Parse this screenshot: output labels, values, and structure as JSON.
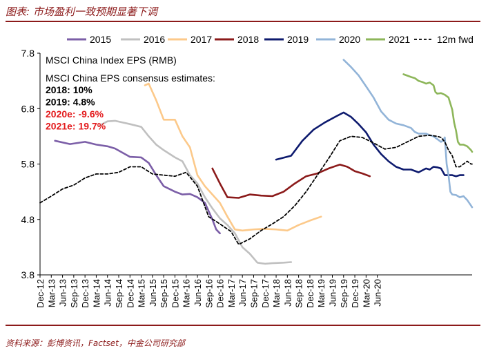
{
  "header": {
    "title": "图表: 市场盈利一致预期显著下调"
  },
  "footer": {
    "source": "资料来源：彭博资讯，Factset，中金公司研究部"
  },
  "chart_data": {
    "type": "line",
    "title": "MSCI China Index EPS (RMB)",
    "ylim": [
      3.8,
      7.8
    ],
    "yticks": [
      3.8,
      4.8,
      5.8,
      6.8,
      7.8
    ],
    "x_start": "Dec-12",
    "x_end": "Oct-20",
    "xticks": [
      "Dec-12",
      "Mar-13",
      "Jun-13",
      "Sep-13",
      "Dec-13",
      "Mar-14",
      "Jun-14",
      "Sep-14",
      "Dec-14",
      "Mar-15",
      "Jun-15",
      "Sep-15",
      "Dec-15",
      "Mar-16",
      "Jun-16",
      "Sep-16",
      "Dec-16",
      "Mar-17",
      "Jun-17",
      "Sep-17",
      "Dec-17",
      "Mar-18",
      "Jun-18",
      "Sep-18",
      "Dec-18",
      "Mar-19",
      "Jun-19",
      "Sep-19",
      "Dec-19",
      "Mar-20",
      "Jun-20"
    ],
    "annotation": {
      "heading": "MSCI China EPS consensus estimates:",
      "lines": [
        {
          "text": "2018: 10%",
          "color": "#000000"
        },
        {
          "text": "2019: 4.8%",
          "color": "#000000"
        },
        {
          "text": "2020e: -9.6%",
          "color": "#e31a1c"
        },
        {
          "text": "2021e: 19.7%",
          "color": "#e31a1c"
        }
      ]
    },
    "series": [
      {
        "name": "2015",
        "color": "#7b5ea7",
        "dash": false,
        "points": [
          [
            4,
            6.22
          ],
          [
            8,
            6.16
          ],
          [
            12,
            6.2
          ],
          [
            15,
            6.15
          ],
          [
            18,
            6.12
          ],
          [
            20,
            6.08
          ],
          [
            24,
            5.93
          ],
          [
            27,
            5.92
          ],
          [
            29,
            5.82
          ],
          [
            31,
            5.6
          ],
          [
            33,
            5.4
          ],
          [
            36,
            5.3
          ],
          [
            38,
            5.25
          ],
          [
            40,
            5.26
          ],
          [
            42,
            5.2
          ],
          [
            44,
            5.1
          ],
          [
            46,
            4.8
          ],
          [
            47,
            4.62
          ],
          [
            48,
            4.55
          ]
        ]
      },
      {
        "name": "2016",
        "color": "#c0c0c0",
        "dash": false,
        "points": [
          [
            16,
            6.5
          ],
          [
            18,
            6.57
          ],
          [
            20,
            6.58
          ],
          [
            24,
            6.52
          ],
          [
            27,
            6.47
          ],
          [
            29,
            6.3
          ],
          [
            31,
            6.15
          ],
          [
            33,
            6.05
          ],
          [
            36,
            5.92
          ],
          [
            38,
            5.85
          ],
          [
            40,
            5.6
          ],
          [
            42,
            5.45
          ],
          [
            44,
            5.2
          ],
          [
            46,
            5.0
          ],
          [
            48,
            4.82
          ],
          [
            50,
            4.7
          ],
          [
            52,
            4.55
          ],
          [
            54,
            4.3
          ],
          [
            56,
            4.18
          ],
          [
            58,
            4.02
          ],
          [
            60,
            4.0
          ],
          [
            62,
            4.01
          ],
          [
            65,
            4.02
          ],
          [
            67,
            4.03
          ]
        ]
      },
      {
        "name": "2017",
        "color": "#fcc98a",
        "dash": false,
        "points": [
          [
            28,
            7.22
          ],
          [
            29,
            7.25
          ],
          [
            31,
            6.95
          ],
          [
            33,
            6.6
          ],
          [
            36,
            6.6
          ],
          [
            38,
            6.3
          ],
          [
            40,
            6.1
          ],
          [
            42,
            5.6
          ],
          [
            44,
            5.4
          ],
          [
            46,
            5.25
          ],
          [
            48,
            5.1
          ],
          [
            50,
            4.85
          ],
          [
            52,
            4.62
          ],
          [
            54,
            4.6
          ],
          [
            57,
            4.62
          ],
          [
            60,
            4.63
          ],
          [
            63,
            4.62
          ],
          [
            66,
            4.6
          ],
          [
            69,
            4.7
          ],
          [
            72,
            4.78
          ],
          [
            75,
            4.85
          ]
        ]
      },
      {
        "name": "2018",
        "color": "#8b1a1a",
        "dash": false,
        "points": [
          [
            46,
            5.72
          ],
          [
            48,
            5.45
          ],
          [
            50,
            5.2
          ],
          [
            53,
            5.19
          ],
          [
            56,
            5.25
          ],
          [
            59,
            5.23
          ],
          [
            62,
            5.22
          ],
          [
            65,
            5.3
          ],
          [
            68,
            5.45
          ],
          [
            71,
            5.58
          ],
          [
            74,
            5.63
          ],
          [
            77,
            5.72
          ],
          [
            80,
            5.79
          ],
          [
            82,
            5.75
          ],
          [
            84,
            5.67
          ],
          [
            86,
            5.63
          ],
          [
            88,
            5.58
          ]
        ]
      },
      {
        "name": "2019",
        "color": "#0d1a6e",
        "dash": false,
        "points": [
          [
            63,
            5.88
          ],
          [
            67,
            5.95
          ],
          [
            70,
            6.22
          ],
          [
            73,
            6.42
          ],
          [
            76,
            6.55
          ],
          [
            79,
            6.66
          ],
          [
            81,
            6.73
          ],
          [
            83,
            6.65
          ],
          [
            85,
            6.52
          ],
          [
            87,
            6.37
          ],
          [
            89,
            6.15
          ],
          [
            91,
            5.98
          ],
          [
            93,
            5.85
          ],
          [
            95,
            5.75
          ],
          [
            97,
            5.7
          ],
          [
            99,
            5.7
          ],
          [
            101,
            5.65
          ],
          [
            103,
            5.72
          ],
          [
            104,
            5.7
          ],
          [
            105,
            5.75
          ],
          [
            106,
            5.74
          ],
          [
            107,
            5.72
          ],
          [
            108,
            5.6
          ],
          [
            110,
            5.6
          ],
          [
            111,
            5.58
          ],
          [
            112,
            5.6
          ],
          [
            113,
            5.6
          ]
        ]
      },
      {
        "name": "2020",
        "color": "#92b4d8",
        "dash": false,
        "points": [
          [
            81,
            7.68
          ],
          [
            83,
            7.55
          ],
          [
            85,
            7.4
          ],
          [
            87,
            7.2
          ],
          [
            89,
            7.0
          ],
          [
            91,
            6.75
          ],
          [
            93,
            6.6
          ],
          [
            95,
            6.53
          ],
          [
            97,
            6.5
          ],
          [
            99,
            6.45
          ],
          [
            100,
            6.38
          ],
          [
            101,
            6.35
          ],
          [
            103,
            6.35
          ],
          [
            104,
            6.32
          ],
          [
            105,
            6.3
          ],
          [
            106,
            6.25
          ],
          [
            107,
            6.2
          ],
          [
            107.5,
            6.22
          ],
          [
            108,
            6.28
          ],
          [
            108.5,
            5.8
          ],
          [
            109,
            5.6
          ],
          [
            109.5,
            5.3
          ],
          [
            110,
            5.25
          ],
          [
            111,
            5.24
          ],
          [
            112,
            5.2
          ],
          [
            113,
            5.22
          ],
          [
            114,
            5.15
          ],
          [
            115,
            5.05
          ],
          [
            115.3,
            5.02
          ]
        ]
      },
      {
        "name": "2021",
        "color": "#8db65a",
        "dash": false,
        "points": [
          [
            97,
            7.42
          ],
          [
            99,
            7.37
          ],
          [
            100,
            7.35
          ],
          [
            101,
            7.3
          ],
          [
            102,
            7.28
          ],
          [
            103,
            7.25
          ],
          [
            104,
            7.27
          ],
          [
            105,
            7.22
          ],
          [
            105.5,
            7.1
          ],
          [
            106,
            7.07
          ],
          [
            107,
            7.08
          ],
          [
            108,
            7.05
          ],
          [
            109,
            7.0
          ],
          [
            110,
            6.78
          ],
          [
            110.5,
            6.55
          ],
          [
            111,
            6.4
          ],
          [
            111.5,
            6.2
          ],
          [
            112,
            6.15
          ],
          [
            113,
            6.15
          ],
          [
            114,
            6.12
          ],
          [
            115,
            6.05
          ],
          [
            115.3,
            6.02
          ]
        ]
      },
      {
        "name": "12m fwd",
        "color": "#000000",
        "dash": true,
        "points": [
          [
            0,
            5.1
          ],
          [
            3,
            5.22
          ],
          [
            6,
            5.35
          ],
          [
            9,
            5.42
          ],
          [
            12,
            5.55
          ],
          [
            15,
            5.62
          ],
          [
            18,
            5.62
          ],
          [
            21,
            5.65
          ],
          [
            24,
            5.75
          ],
          [
            27,
            5.75
          ],
          [
            30,
            5.62
          ],
          [
            33,
            5.6
          ],
          [
            36,
            5.58
          ],
          [
            39,
            5.65
          ],
          [
            42,
            5.4
          ],
          [
            45,
            4.85
          ],
          [
            48,
            4.72
          ],
          [
            51,
            4.58
          ],
          [
            53,
            4.35
          ],
          [
            56,
            4.45
          ],
          [
            59,
            4.6
          ],
          [
            62,
            4.72
          ],
          [
            65,
            4.85
          ],
          [
            68,
            5.05
          ],
          [
            71,
            5.3
          ],
          [
            74,
            5.6
          ],
          [
            77,
            5.9
          ],
          [
            80,
            6.22
          ],
          [
            83,
            6.3
          ],
          [
            86,
            6.28
          ],
          [
            89,
            6.18
          ],
          [
            92,
            6.07
          ],
          [
            95,
            6.1
          ],
          [
            98,
            6.2
          ],
          [
            101,
            6.3
          ],
          [
            104,
            6.32
          ],
          [
            106,
            6.3
          ],
          [
            107,
            6.28
          ],
          [
            108,
            6.2
          ],
          [
            109,
            6.05
          ],
          [
            110,
            5.95
          ],
          [
            111,
            5.75
          ],
          [
            112,
            5.75
          ],
          [
            113,
            5.8
          ],
          [
            114,
            5.85
          ],
          [
            115,
            5.8
          ],
          [
            115.3,
            5.8
          ]
        ]
      }
    ]
  }
}
